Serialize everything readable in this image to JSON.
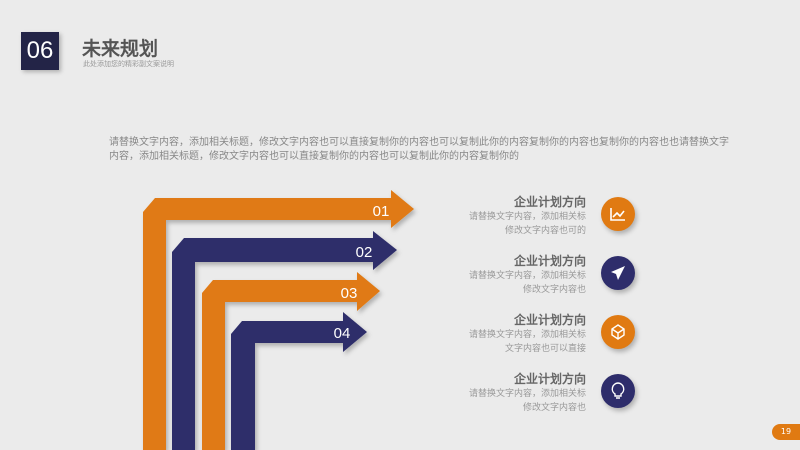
{
  "header": {
    "section_number": "06",
    "title": "未来规划",
    "subtitle": "此处添加您的精彩副文案说明"
  },
  "intro": "请替换文字内容，添加相关标题，修改文字内容也可以直接复制你的内容也可以复制此你的内容复制你的内容也复制你的内容也也请替换文字内容，添加相关标题，修改文字内容也可以直接复制你的内容也可以复制此你的内容复制你的",
  "colors": {
    "orange": "#e07a12",
    "navy": "#2e2d6b",
    "background": "#ebebeb"
  },
  "arrows": [
    {
      "label": "01",
      "color": "orange"
    },
    {
      "label": "02",
      "color": "navy"
    },
    {
      "label": "03",
      "color": "orange"
    },
    {
      "label": "04",
      "color": "navy"
    }
  ],
  "items": [
    {
      "heading": "企业计划方向",
      "line1": "请替换文字内容，添加相关标",
      "line2": "修改文字内容也可的",
      "icon": "chart-line-icon",
      "color": "orange"
    },
    {
      "heading": "企业计划方向",
      "line1": "请替换文字内容，添加相关标",
      "line2": "修改文字内容也",
      "icon": "paper-plane-icon",
      "color": "navy"
    },
    {
      "heading": "企业计划方向",
      "line1": "请替换文字内容，添加相关标",
      "line2": "文字内容也可以直接",
      "icon": "cube-icon",
      "color": "orange"
    },
    {
      "heading": "企业计划方向",
      "line1": "请替换文字内容，添加相关标",
      "line2": "修改文字内容也",
      "icon": "lightbulb-icon",
      "color": "navy"
    }
  ],
  "page_number": "19"
}
